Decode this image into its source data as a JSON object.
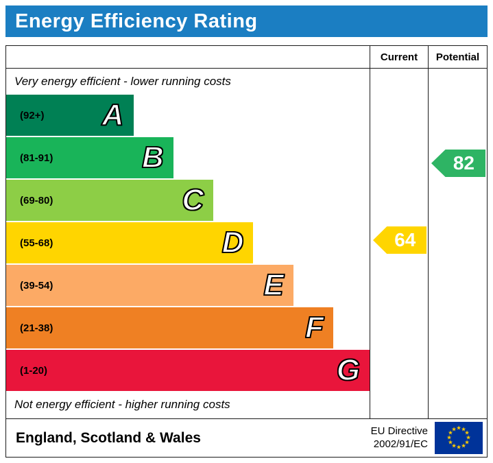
{
  "title": "Energy Efficiency Rating",
  "header": {
    "current": "Current",
    "potential": "Potential"
  },
  "notes": {
    "top": "Very energy efficient - lower running costs",
    "bottom": "Not energy efficient - higher running costs"
  },
  "footer": {
    "region": "England, Scotland & Wales",
    "directive": [
      "EU Directive",
      "2002/91/EC"
    ]
  },
  "colors": {
    "title_bg": "#1b7ec2",
    "current_arrow": "#ffd500",
    "potential_arrow": "#2eb464",
    "eu_flag_blue": "#003399",
    "eu_star_yellow": "#ffcc00"
  },
  "chart_data": {
    "type": "bar",
    "title": "Energy Efficiency Rating",
    "xlabel": "",
    "ylabel": "",
    "legend_position": "top-right-columns",
    "grid": false,
    "bands": [
      {
        "letter": "A",
        "range": "(92+)",
        "min": 92,
        "max": 100,
        "color": "#008054",
        "width_pct": 35
      },
      {
        "letter": "B",
        "range": "(81-91)",
        "min": 81,
        "max": 91,
        "color": "#19b459",
        "width_pct": 46
      },
      {
        "letter": "C",
        "range": "(69-80)",
        "min": 69,
        "max": 80,
        "color": "#8dce46",
        "width_pct": 57
      },
      {
        "letter": "D",
        "range": "(55-68)",
        "min": 55,
        "max": 68,
        "color": "#ffd500",
        "width_pct": 68
      },
      {
        "letter": "E",
        "range": "(39-54)",
        "min": 39,
        "max": 54,
        "color": "#fcaa65",
        "width_pct": 79
      },
      {
        "letter": "F",
        "range": "(21-38)",
        "min": 21,
        "max": 38,
        "color": "#ef8023",
        "width_pct": 90
      },
      {
        "letter": "G",
        "range": "(1-20)",
        "min": 1,
        "max": 20,
        "color": "#e9153b",
        "width_pct": 100
      }
    ],
    "current": {
      "value": 64,
      "band": "D",
      "band_index": 3
    },
    "potential": {
      "value": 82,
      "band": "B",
      "band_index": 1
    }
  }
}
